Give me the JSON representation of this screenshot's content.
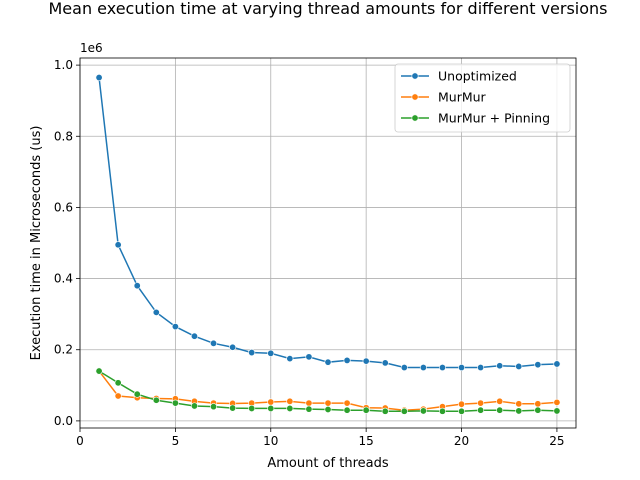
{
  "chart_data": {
    "type": "line",
    "title": "Mean execution time at varying thread amounts for different versions",
    "xlabel": "Amount of threads",
    "ylabel": "Execution time in Microseconds (us)",
    "y_offset_label": "1e6",
    "xlim": [
      0,
      26
    ],
    "ylim": [
      -0.02,
      1.02
    ],
    "y_scale_factor": 1000000,
    "grid": true,
    "legend_position": "top-right",
    "x_ticks": [
      0,
      5,
      10,
      15,
      20,
      25
    ],
    "x_tick_labels": [
      "0",
      "5",
      "10",
      "15",
      "20",
      "25"
    ],
    "y_ticks": [
      0.0,
      0.2,
      0.4,
      0.6,
      0.8,
      1.0
    ],
    "y_tick_labels": [
      "0.0",
      "0.2",
      "0.4",
      "0.6",
      "0.8",
      "1.0"
    ],
    "x": [
      1,
      2,
      3,
      4,
      5,
      6,
      7,
      8,
      9,
      10,
      11,
      12,
      13,
      14,
      15,
      16,
      17,
      18,
      19,
      20,
      21,
      22,
      23,
      24,
      25
    ],
    "series": [
      {
        "name": "Unoptimized",
        "color": "#1f77b4",
        "values": [
          0.965,
          0.495,
          0.38,
          0.305,
          0.265,
          0.238,
          0.218,
          0.207,
          0.192,
          0.19,
          0.175,
          0.18,
          0.165,
          0.17,
          0.168,
          0.163,
          0.15,
          0.15,
          0.15,
          0.15,
          0.15,
          0.155,
          0.153,
          0.158,
          0.16
        ]
      },
      {
        "name": "MurMur",
        "color": "#ff7f0e",
        "values": [
          0.14,
          0.07,
          0.065,
          0.063,
          0.062,
          0.055,
          0.05,
          0.049,
          0.05,
          0.053,
          0.055,
          0.05,
          0.05,
          0.05,
          0.037,
          0.036,
          0.03,
          0.033,
          0.04,
          0.047,
          0.05,
          0.055,
          0.048,
          0.048,
          0.052
        ]
      },
      {
        "name": "MurMur + Pinning",
        "color": "#2ca02c",
        "values": [
          0.14,
          0.107,
          0.075,
          0.058,
          0.05,
          0.042,
          0.04,
          0.036,
          0.035,
          0.035,
          0.035,
          0.033,
          0.032,
          0.03,
          0.03,
          0.027,
          0.027,
          0.028,
          0.027,
          0.027,
          0.03,
          0.03,
          0.028,
          0.03,
          0.028
        ]
      }
    ]
  }
}
